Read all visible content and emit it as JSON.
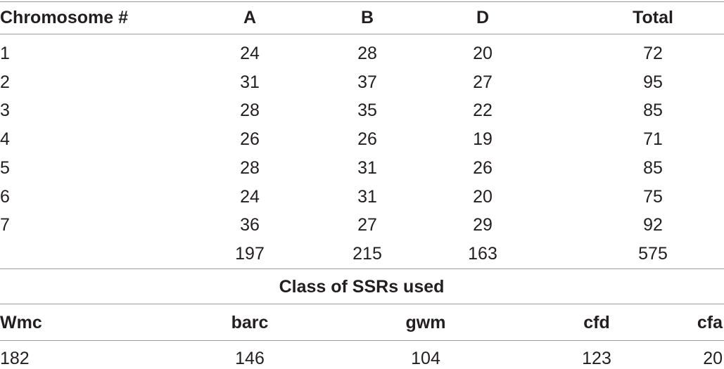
{
  "table": {
    "header": [
      "Chromosome #",
      "A",
      "B",
      "D",
      "Total"
    ],
    "rows": [
      [
        "1",
        24,
        28,
        20,
        72
      ],
      [
        "2",
        31,
        37,
        27,
        95
      ],
      [
        "3",
        28,
        35,
        22,
        85
      ],
      [
        "4",
        26,
        26,
        19,
        71
      ],
      [
        "5",
        28,
        31,
        26,
        85
      ],
      [
        "6",
        24,
        31,
        20,
        75
      ],
      [
        "7",
        36,
        27,
        29,
        92
      ]
    ],
    "totals": [
      197,
      215,
      163,
      575
    ]
  },
  "ssr_table": {
    "title": "Class of SSRs used",
    "header": [
      "Wmc",
      "barc",
      "gwm",
      "cfd",
      "cfa"
    ],
    "row": [
      182,
      146,
      104,
      123,
      20
    ]
  }
}
